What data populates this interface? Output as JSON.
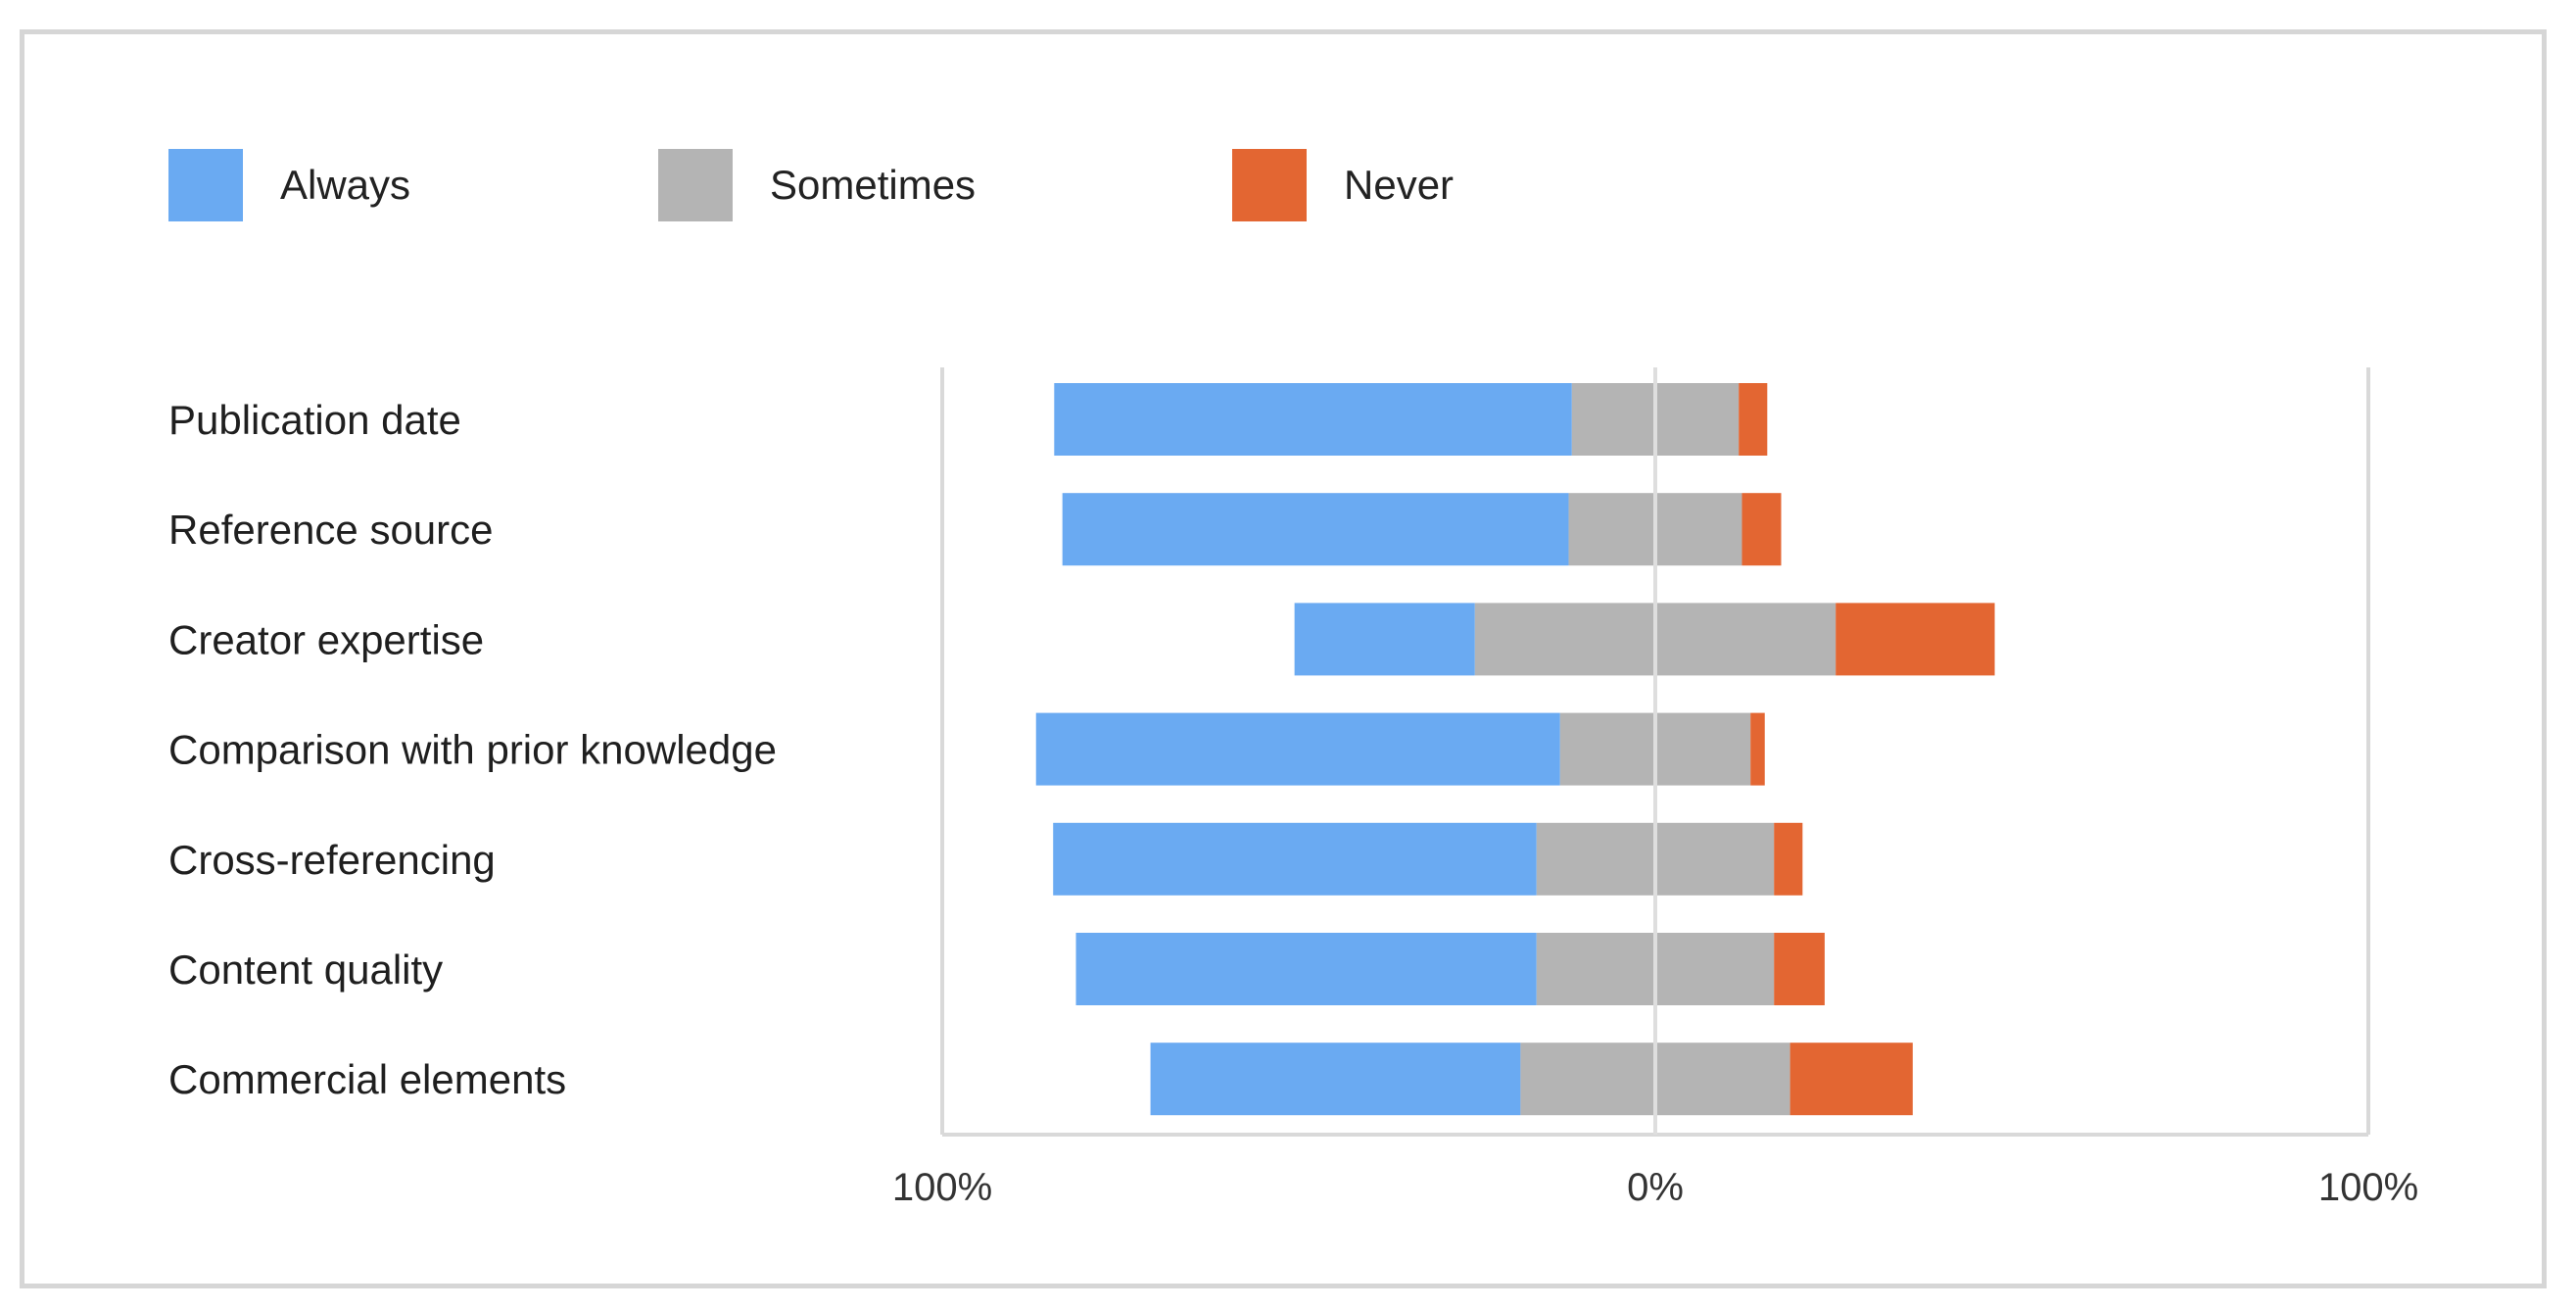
{
  "chart_data": {
    "type": "bar",
    "orientation": "horizontal",
    "stacking": "diverging",
    "title": "",
    "xlabel": "",
    "ylabel": "",
    "xlim": [
      -100,
      100
    ],
    "x_tick_labels": [
      "100%",
      "0%",
      "100%"
    ],
    "x_tick_values": [
      -100,
      0,
      100
    ],
    "legend_position": "top-left",
    "grid": false,
    "categories": [
      "Publication date",
      "Reference source",
      "Creator expertise",
      "Comparison with prior knowledge",
      "Cross-referencing",
      "Content quality",
      "Commercial elements"
    ],
    "series": [
      {
        "name": "Always",
        "color": "#6aaaf2",
        "values": [
          72.6,
          71.0,
          25.3,
          73.5,
          67.8,
          64.6,
          51.9
        ]
      },
      {
        "name": "Sometimes",
        "color": "#b4b4b4",
        "values": [
          23.4,
          24.3,
          50.6,
          26.7,
          33.3,
          33.3,
          37.8
        ]
      },
      {
        "name": "Never",
        "color": "#e36632",
        "values": [
          4.0,
          5.5,
          22.3,
          2.0,
          4.0,
          7.1,
          17.2
        ]
      }
    ],
    "sometimes_split_left_fraction": [
      0.5,
      0.5,
      0.5,
      0.5,
      0.5,
      0.5,
      0.5
    ]
  }
}
